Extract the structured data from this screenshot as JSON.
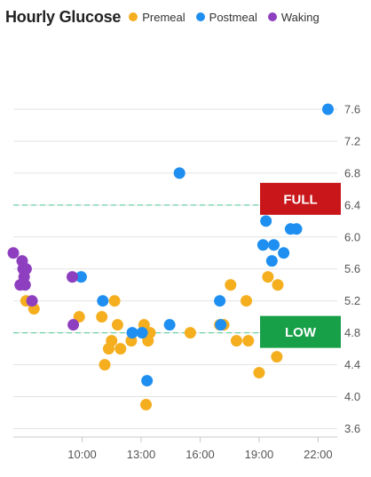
{
  "header": {
    "title": "Hourly Glucose"
  },
  "legend": [
    {
      "label": "Premeal",
      "color": "#f5ae1e"
    },
    {
      "label": "Postmeal",
      "color": "#1e8ff0"
    },
    {
      "label": "Waking",
      "color": "#8e3fbf"
    }
  ],
  "thresholds": [
    {
      "label": "FULL",
      "value": 6.4,
      "color": "#c8161a"
    },
    {
      "label": "LOW",
      "value": 4.8,
      "color": "#18a048"
    }
  ],
  "chart_data": {
    "type": "scatter",
    "x_unit": "hour of day",
    "xlim": [
      6.5,
      22.75
    ],
    "ylim": [
      3.55,
      7.7
    ],
    "x_ticks": [
      {
        "value": 10,
        "label": "10:00"
      },
      {
        "value": 13,
        "label": "13:00"
      },
      {
        "value": 16,
        "label": "16:00"
      },
      {
        "value": 19,
        "label": "19:00"
      },
      {
        "value": 22,
        "label": "22:00"
      }
    ],
    "y_ticks": [
      {
        "value": 3.6,
        "label": "3.6"
      },
      {
        "value": 4.0,
        "label": "4.0"
      },
      {
        "value": 4.4,
        "label": "4.4"
      },
      {
        "value": 4.8,
        "label": "4.8"
      },
      {
        "value": 5.2,
        "label": "5.2"
      },
      {
        "value": 5.6,
        "label": "5.6"
      },
      {
        "value": 6.0,
        "label": "6.0"
      },
      {
        "value": 6.4,
        "label": "6.4"
      },
      {
        "value": 6.8,
        "label": "6.8"
      },
      {
        "value": 7.2,
        "label": "7.2"
      },
      {
        "value": 7.6,
        "label": "7.6"
      }
    ],
    "series": [
      {
        "name": "Premeal",
        "color": "#f5ae1e",
        "points": [
          [
            7.15,
            5.2
          ],
          [
            7.55,
            5.1
          ],
          [
            9.85,
            5.0
          ],
          [
            11.0,
            5.0
          ],
          [
            11.15,
            4.4
          ],
          [
            11.35,
            4.6
          ],
          [
            11.5,
            4.7
          ],
          [
            11.65,
            5.2
          ],
          [
            11.8,
            4.9
          ],
          [
            11.95,
            4.6
          ],
          [
            12.5,
            4.7
          ],
          [
            13.1,
            4.8
          ],
          [
            13.15,
            4.9
          ],
          [
            13.25,
            3.9
          ],
          [
            13.35,
            4.7
          ],
          [
            13.45,
            4.8
          ],
          [
            15.5,
            4.8
          ],
          [
            17.0,
            4.9
          ],
          [
            17.2,
            4.9
          ],
          [
            17.55,
            5.4
          ],
          [
            17.85,
            4.7
          ],
          [
            18.35,
            5.2
          ],
          [
            18.45,
            4.7
          ],
          [
            19.0,
            4.3
          ],
          [
            19.45,
            5.5
          ],
          [
            19.9,
            4.5
          ],
          [
            19.95,
            5.4
          ]
        ]
      },
      {
        "name": "Postmeal",
        "color": "#1e8ff0",
        "points": [
          [
            9.95,
            5.5
          ],
          [
            11.05,
            5.2
          ],
          [
            12.55,
            4.8
          ],
          [
            13.05,
            4.8
          ],
          [
            13.3,
            4.2
          ],
          [
            14.45,
            4.9
          ],
          [
            14.95,
            6.8
          ],
          [
            17.0,
            5.2
          ],
          [
            17.05,
            4.9
          ],
          [
            19.2,
            5.9
          ],
          [
            19.35,
            6.2
          ],
          [
            19.65,
            5.7
          ],
          [
            19.75,
            5.9
          ],
          [
            20.25,
            5.8
          ],
          [
            20.6,
            6.1
          ],
          [
            20.9,
            6.1
          ],
          [
            22.5,
            7.6
          ]
        ]
      },
      {
        "name": "Waking",
        "color": "#8e3fbf",
        "points": [
          [
            6.5,
            5.8
          ],
          [
            6.85,
            5.4
          ],
          [
            6.95,
            5.7
          ],
          [
            7.0,
            5.6
          ],
          [
            7.05,
            5.5
          ],
          [
            7.1,
            5.4
          ],
          [
            7.15,
            5.6
          ],
          [
            7.45,
            5.2
          ],
          [
            9.5,
            5.5
          ],
          [
            9.55,
            4.9
          ]
        ]
      }
    ]
  }
}
